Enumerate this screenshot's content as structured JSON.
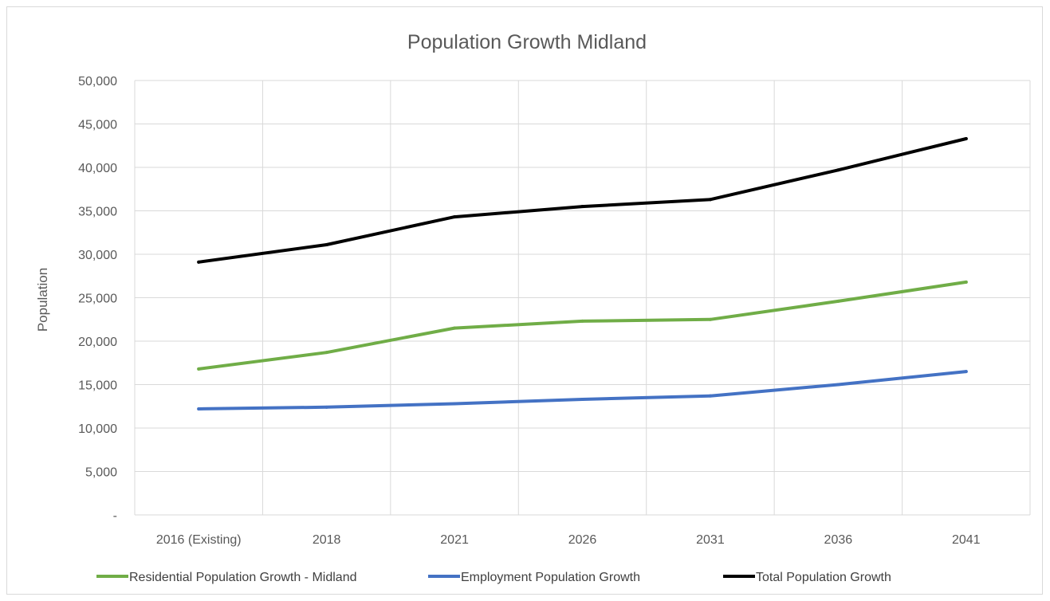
{
  "chart_data": {
    "type": "line",
    "title": "Population Growth Midland",
    "xlabel": "",
    "ylabel": "Population",
    "categories": [
      "2016 (Existing)",
      "2018",
      "2021",
      "2026",
      "2031",
      "2036",
      "2041"
    ],
    "ylim": [
      0,
      50000
    ],
    "y_ticks": [
      0,
      5000,
      10000,
      15000,
      20000,
      25000,
      30000,
      35000,
      40000,
      45000,
      50000
    ],
    "y_tick_labels": [
      "-",
      "5,000",
      "10,000",
      "15,000",
      "20,000",
      "25,000",
      "30,000",
      "35,000",
      "40,000",
      "45,000",
      "50,000"
    ],
    "grid": true,
    "legend_position": "bottom",
    "series": [
      {
        "name": "Residential Population Growth - Midland",
        "color": "#70ad47",
        "values": [
          16800,
          18700,
          21500,
          22300,
          22500,
          24600,
          26800
        ]
      },
      {
        "name": "Employment Population Growth",
        "color": "#4472c4",
        "values": [
          12200,
          12400,
          12800,
          13300,
          13700,
          15000,
          16500
        ]
      },
      {
        "name": "Total Population Growth",
        "color": "#000000",
        "values": [
          29100,
          31100,
          34300,
          35500,
          36300,
          39700,
          43300
        ]
      }
    ]
  }
}
